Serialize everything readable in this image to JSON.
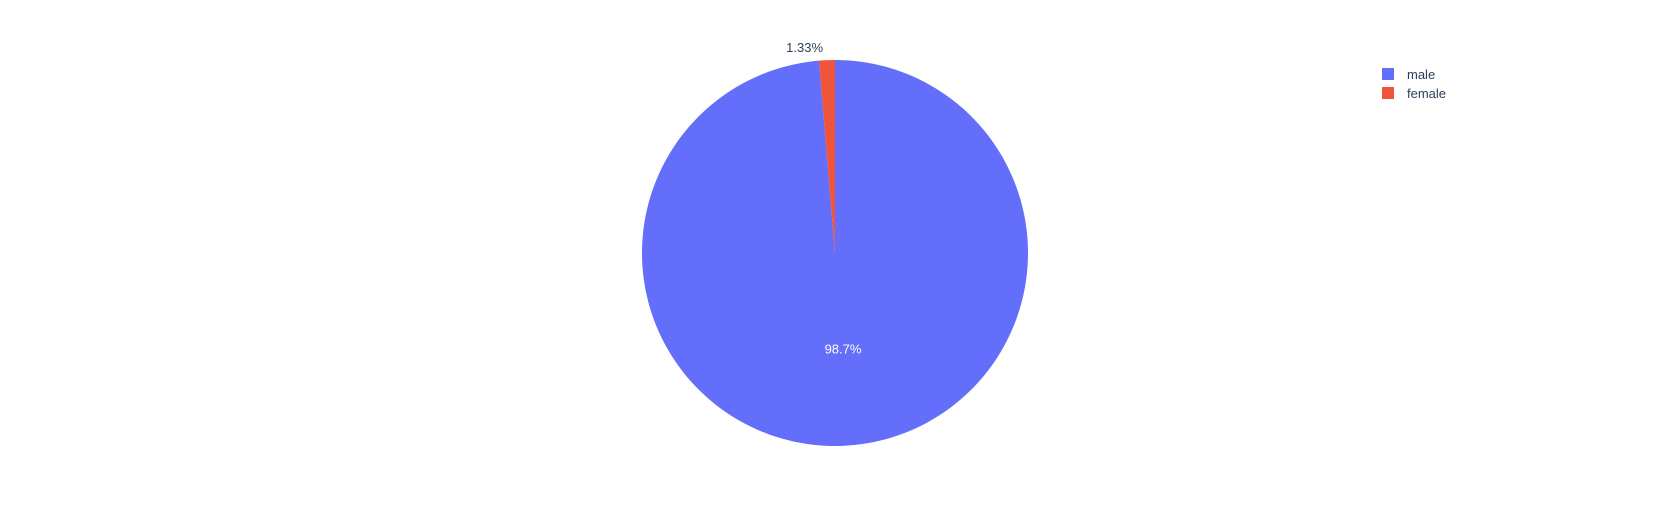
{
  "chart_data": {
    "type": "pie",
    "labels": [
      "male",
      "female"
    ],
    "values": [
      98.67,
      1.33
    ],
    "text_labels": [
      "98.7%",
      "1.33%"
    ],
    "colors": [
      "#636efa",
      "#ef553b"
    ],
    "direction": "clockwise",
    "legend_position": "top-right"
  }
}
